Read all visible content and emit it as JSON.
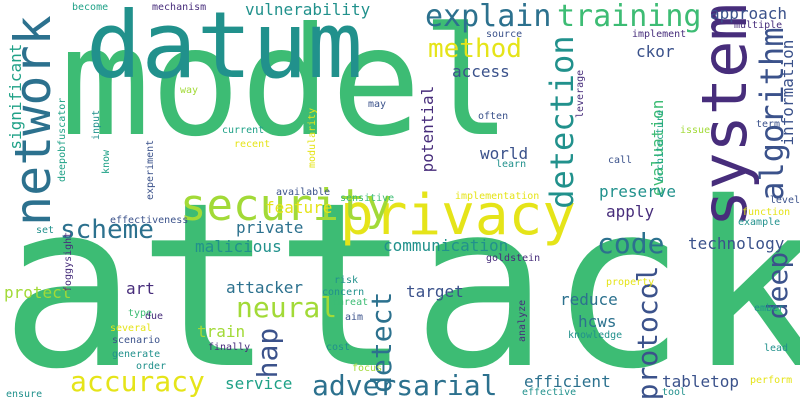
{
  "palette": {
    "light_green": "#3dbc74",
    "yellow": "#e5e419",
    "lime": "#a2da37",
    "teal": "#21918c",
    "blue": "#2c718e",
    "indigo": "#3b528b",
    "purple": "#472d7b",
    "dark_purple": "#440154",
    "aqua": "#1fa187"
  },
  "words": [
    {
      "text": "attack",
      "color": "light_green"
    },
    {
      "text": "model",
      "color": "light_green"
    },
    {
      "text": "datum",
      "color": "teal"
    },
    {
      "text": "privacy",
      "color": "yellow"
    },
    {
      "text": "system",
      "color": "purple"
    },
    {
      "text": "network",
      "color": "blue"
    },
    {
      "text": "security",
      "color": "lime"
    },
    {
      "text": "explain",
      "color": "blue"
    },
    {
      "text": "training",
      "color": "light_green"
    },
    {
      "text": "method",
      "color": "yellow"
    },
    {
      "text": "scheme",
      "color": "blue"
    },
    {
      "text": "detection",
      "color": "teal"
    },
    {
      "text": "algorithm",
      "color": "indigo"
    },
    {
      "text": "accuracy",
      "color": "yellow"
    },
    {
      "text": "adversarial",
      "color": "blue"
    },
    {
      "text": "neural",
      "color": "lime"
    },
    {
      "text": "detect",
      "color": "blue"
    },
    {
      "text": "code",
      "color": "blue"
    },
    {
      "text": "deep",
      "color": "indigo"
    },
    {
      "text": "protocol",
      "color": "indigo"
    },
    {
      "text": "hap",
      "color": "indigo"
    },
    {
      "text": "vulnerability",
      "color": "teal"
    },
    {
      "text": "approach",
      "color": "indigo"
    },
    {
      "text": "information",
      "color": "indigo"
    },
    {
      "text": "significant",
      "color": "aqua"
    },
    {
      "text": "evaluation",
      "color": "light_green"
    },
    {
      "text": "potential",
      "color": "purple"
    },
    {
      "text": "world",
      "color": "indigo"
    },
    {
      "text": "preserve",
      "color": "teal"
    },
    {
      "text": "apply",
      "color": "purple"
    },
    {
      "text": "technology",
      "color": "indigo"
    },
    {
      "text": "ckor",
      "color": "indigo"
    },
    {
      "text": "access",
      "color": "indigo"
    },
    {
      "text": "malicious",
      "color": "teal"
    },
    {
      "text": "communication",
      "color": "teal"
    },
    {
      "text": "private",
      "color": "blue"
    },
    {
      "text": "feature",
      "color": "yellow"
    },
    {
      "text": "train",
      "color": "lime"
    },
    {
      "text": "attacker",
      "color": "blue"
    },
    {
      "text": "target",
      "color": "indigo"
    },
    {
      "text": "reduce",
      "color": "blue"
    },
    {
      "text": "hcws",
      "color": "blue"
    },
    {
      "text": "tabletop",
      "color": "indigo"
    },
    {
      "text": "efficient",
      "color": "blue"
    },
    {
      "text": "service",
      "color": "aqua"
    },
    {
      "text": "protect",
      "color": "lime"
    },
    {
      "text": "art",
      "color": "purple"
    },
    {
      "text": "become",
      "color": "aqua"
    },
    {
      "text": "mechanism",
      "color": "purple"
    },
    {
      "text": "source",
      "color": "indigo"
    },
    {
      "text": "implement",
      "color": "purple"
    },
    {
      "text": "multiple",
      "color": "purple"
    },
    {
      "text": "way",
      "color": "lime"
    },
    {
      "text": "leverage",
      "color": "purple"
    },
    {
      "text": "may",
      "color": "indigo"
    },
    {
      "text": "often",
      "color": "indigo"
    },
    {
      "text": "current",
      "color": "aqua"
    },
    {
      "text": "recent",
      "color": "yellow"
    },
    {
      "text": "learn",
      "color": "teal"
    },
    {
      "text": "architecture",
      "color": "aqua"
    },
    {
      "text": "issue",
      "color": "lime"
    },
    {
      "text": "term",
      "color": "indigo"
    },
    {
      "text": "call",
      "color": "indigo"
    },
    {
      "text": "deepobfuscator",
      "color": "aqua"
    },
    {
      "text": "input",
      "color": "teal"
    },
    {
      "text": "know",
      "color": "aqua"
    },
    {
      "text": "experiment",
      "color": "indigo"
    },
    {
      "text": "modularity",
      "color": "yellow"
    },
    {
      "text": "implementation",
      "color": "yellow"
    },
    {
      "text": "available",
      "color": "indigo"
    },
    {
      "text": "sensitive",
      "color": "light_green"
    },
    {
      "text": "effectiveness",
      "color": "indigo"
    },
    {
      "text": "level",
      "color": "indigo"
    },
    {
      "text": "function",
      "color": "yellow"
    },
    {
      "text": "example",
      "color": "teal"
    },
    {
      "text": "foggysight",
      "color": "purple"
    },
    {
      "text": "set",
      "color": "teal"
    },
    {
      "text": "goldstein",
      "color": "purple"
    },
    {
      "text": "risk",
      "color": "teal"
    },
    {
      "text": "concern",
      "color": "teal"
    },
    {
      "text": "threat",
      "color": "light_green"
    },
    {
      "text": "aim",
      "color": "indigo"
    },
    {
      "text": "property",
      "color": "yellow"
    },
    {
      "text": "type",
      "color": "light_green"
    },
    {
      "text": "due",
      "color": "purple"
    },
    {
      "text": "several",
      "color": "yellow"
    },
    {
      "text": "scenario",
      "color": "indigo"
    },
    {
      "text": "generate",
      "color": "teal"
    },
    {
      "text": "order",
      "color": "teal"
    },
    {
      "text": "finally",
      "color": "purple"
    },
    {
      "text": "cost",
      "color": "teal"
    },
    {
      "text": "focus",
      "color": "lime"
    },
    {
      "text": "analyze",
      "color": "purple"
    },
    {
      "text": "knowledge",
      "color": "teal"
    },
    {
      "text": "ember",
      "color": "teal"
    },
    {
      "text": "lead",
      "color": "teal"
    },
    {
      "text": "perform",
      "color": "yellow"
    },
    {
      "text": "effective",
      "color": "teal"
    },
    {
      "text": "tool",
      "color": "teal"
    },
    {
      "text": "ensure",
      "color": "teal"
    }
  ]
}
